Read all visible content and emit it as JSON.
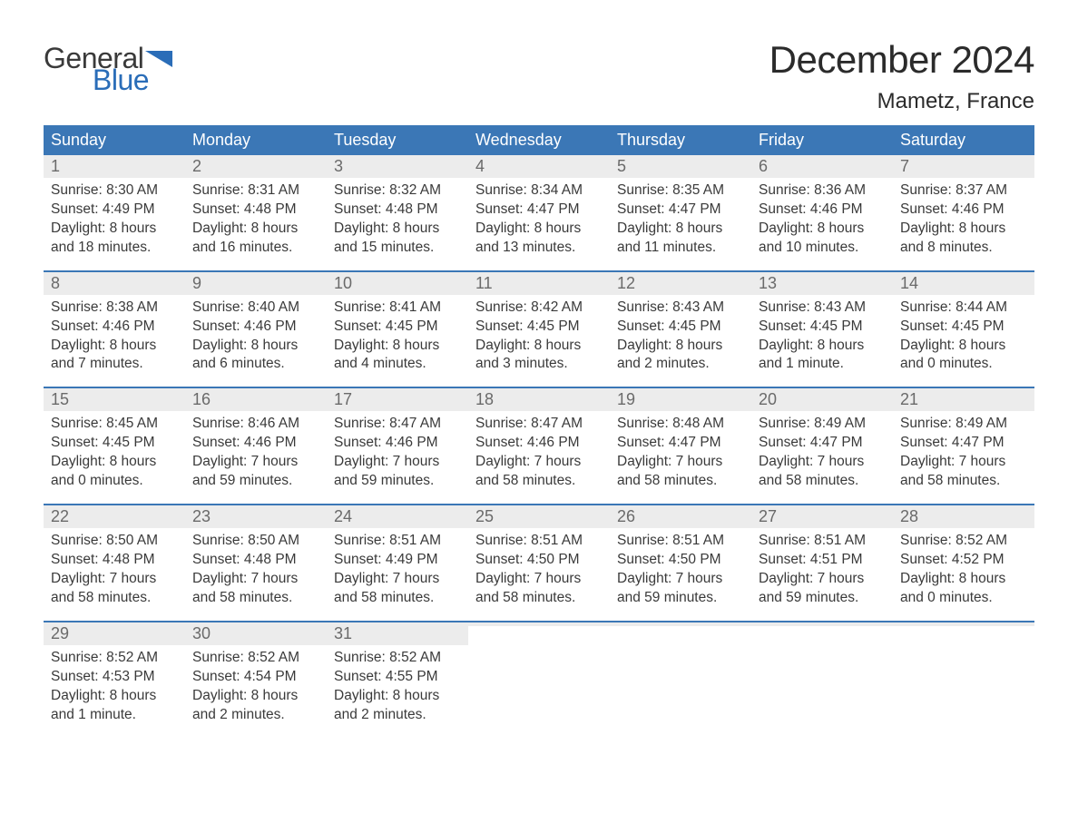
{
  "colors": {
    "header_bg": "#3b77b6",
    "header_text": "#ffffff",
    "row_divider": "#3b77b6",
    "daynum_bg": "#ececec",
    "daynum_text": "#6a6a6a",
    "body_text": "#3a3a3a",
    "logo_general": "#3a3a3a",
    "logo_blue": "#2a6db8",
    "title_text": "#2b2b2b",
    "page_bg": "#ffffff"
  },
  "typography": {
    "title_fontsize": 42,
    "location_fontsize": 24,
    "dow_fontsize": 18,
    "daynum_fontsize": 18,
    "body_fontsize": 15.5,
    "logo_fontsize": 32,
    "font_family": "Arial"
  },
  "logo": {
    "text_general": "General",
    "text_blue": "Blue"
  },
  "title": "December 2024",
  "location": "Mametz, France",
  "dow": [
    "Sunday",
    "Monday",
    "Tuesday",
    "Wednesday",
    "Thursday",
    "Friday",
    "Saturday"
  ],
  "weeks": [
    [
      {
        "n": "1",
        "sunrise": "Sunrise: 8:30 AM",
        "sunset": "Sunset: 4:49 PM",
        "dl1": "Daylight: 8 hours",
        "dl2": "and 18 minutes."
      },
      {
        "n": "2",
        "sunrise": "Sunrise: 8:31 AM",
        "sunset": "Sunset: 4:48 PM",
        "dl1": "Daylight: 8 hours",
        "dl2": "and 16 minutes."
      },
      {
        "n": "3",
        "sunrise": "Sunrise: 8:32 AM",
        "sunset": "Sunset: 4:48 PM",
        "dl1": "Daylight: 8 hours",
        "dl2": "and 15 minutes."
      },
      {
        "n": "4",
        "sunrise": "Sunrise: 8:34 AM",
        "sunset": "Sunset: 4:47 PM",
        "dl1": "Daylight: 8 hours",
        "dl2": "and 13 minutes."
      },
      {
        "n": "5",
        "sunrise": "Sunrise: 8:35 AM",
        "sunset": "Sunset: 4:47 PM",
        "dl1": "Daylight: 8 hours",
        "dl2": "and 11 minutes."
      },
      {
        "n": "6",
        "sunrise": "Sunrise: 8:36 AM",
        "sunset": "Sunset: 4:46 PM",
        "dl1": "Daylight: 8 hours",
        "dl2": "and 10 minutes."
      },
      {
        "n": "7",
        "sunrise": "Sunrise: 8:37 AM",
        "sunset": "Sunset: 4:46 PM",
        "dl1": "Daylight: 8 hours",
        "dl2": "and 8 minutes."
      }
    ],
    [
      {
        "n": "8",
        "sunrise": "Sunrise: 8:38 AM",
        "sunset": "Sunset: 4:46 PM",
        "dl1": "Daylight: 8 hours",
        "dl2": "and 7 minutes."
      },
      {
        "n": "9",
        "sunrise": "Sunrise: 8:40 AM",
        "sunset": "Sunset: 4:46 PM",
        "dl1": "Daylight: 8 hours",
        "dl2": "and 6 minutes."
      },
      {
        "n": "10",
        "sunrise": "Sunrise: 8:41 AM",
        "sunset": "Sunset: 4:45 PM",
        "dl1": "Daylight: 8 hours",
        "dl2": "and 4 minutes."
      },
      {
        "n": "11",
        "sunrise": "Sunrise: 8:42 AM",
        "sunset": "Sunset: 4:45 PM",
        "dl1": "Daylight: 8 hours",
        "dl2": "and 3 minutes."
      },
      {
        "n": "12",
        "sunrise": "Sunrise: 8:43 AM",
        "sunset": "Sunset: 4:45 PM",
        "dl1": "Daylight: 8 hours",
        "dl2": "and 2 minutes."
      },
      {
        "n": "13",
        "sunrise": "Sunrise: 8:43 AM",
        "sunset": "Sunset: 4:45 PM",
        "dl1": "Daylight: 8 hours",
        "dl2": "and 1 minute."
      },
      {
        "n": "14",
        "sunrise": "Sunrise: 8:44 AM",
        "sunset": "Sunset: 4:45 PM",
        "dl1": "Daylight: 8 hours",
        "dl2": "and 0 minutes."
      }
    ],
    [
      {
        "n": "15",
        "sunrise": "Sunrise: 8:45 AM",
        "sunset": "Sunset: 4:45 PM",
        "dl1": "Daylight: 8 hours",
        "dl2": "and 0 minutes."
      },
      {
        "n": "16",
        "sunrise": "Sunrise: 8:46 AM",
        "sunset": "Sunset: 4:46 PM",
        "dl1": "Daylight: 7 hours",
        "dl2": "and 59 minutes."
      },
      {
        "n": "17",
        "sunrise": "Sunrise: 8:47 AM",
        "sunset": "Sunset: 4:46 PM",
        "dl1": "Daylight: 7 hours",
        "dl2": "and 59 minutes."
      },
      {
        "n": "18",
        "sunrise": "Sunrise: 8:47 AM",
        "sunset": "Sunset: 4:46 PM",
        "dl1": "Daylight: 7 hours",
        "dl2": "and 58 minutes."
      },
      {
        "n": "19",
        "sunrise": "Sunrise: 8:48 AM",
        "sunset": "Sunset: 4:47 PM",
        "dl1": "Daylight: 7 hours",
        "dl2": "and 58 minutes."
      },
      {
        "n": "20",
        "sunrise": "Sunrise: 8:49 AM",
        "sunset": "Sunset: 4:47 PM",
        "dl1": "Daylight: 7 hours",
        "dl2": "and 58 minutes."
      },
      {
        "n": "21",
        "sunrise": "Sunrise: 8:49 AM",
        "sunset": "Sunset: 4:47 PM",
        "dl1": "Daylight: 7 hours",
        "dl2": "and 58 minutes."
      }
    ],
    [
      {
        "n": "22",
        "sunrise": "Sunrise: 8:50 AM",
        "sunset": "Sunset: 4:48 PM",
        "dl1": "Daylight: 7 hours",
        "dl2": "and 58 minutes."
      },
      {
        "n": "23",
        "sunrise": "Sunrise: 8:50 AM",
        "sunset": "Sunset: 4:48 PM",
        "dl1": "Daylight: 7 hours",
        "dl2": "and 58 minutes."
      },
      {
        "n": "24",
        "sunrise": "Sunrise: 8:51 AM",
        "sunset": "Sunset: 4:49 PM",
        "dl1": "Daylight: 7 hours",
        "dl2": "and 58 minutes."
      },
      {
        "n": "25",
        "sunrise": "Sunrise: 8:51 AM",
        "sunset": "Sunset: 4:50 PM",
        "dl1": "Daylight: 7 hours",
        "dl2": "and 58 minutes."
      },
      {
        "n": "26",
        "sunrise": "Sunrise: 8:51 AM",
        "sunset": "Sunset: 4:50 PM",
        "dl1": "Daylight: 7 hours",
        "dl2": "and 59 minutes."
      },
      {
        "n": "27",
        "sunrise": "Sunrise: 8:51 AM",
        "sunset": "Sunset: 4:51 PM",
        "dl1": "Daylight: 7 hours",
        "dl2": "and 59 minutes."
      },
      {
        "n": "28",
        "sunrise": "Sunrise: 8:52 AM",
        "sunset": "Sunset: 4:52 PM",
        "dl1": "Daylight: 8 hours",
        "dl2": "and 0 minutes."
      }
    ],
    [
      {
        "n": "29",
        "sunrise": "Sunrise: 8:52 AM",
        "sunset": "Sunset: 4:53 PM",
        "dl1": "Daylight: 8 hours",
        "dl2": "and 1 minute."
      },
      {
        "n": "30",
        "sunrise": "Sunrise: 8:52 AM",
        "sunset": "Sunset: 4:54 PM",
        "dl1": "Daylight: 8 hours",
        "dl2": "and 2 minutes."
      },
      {
        "n": "31",
        "sunrise": "Sunrise: 8:52 AM",
        "sunset": "Sunset: 4:55 PM",
        "dl1": "Daylight: 8 hours",
        "dl2": "and 2 minutes."
      },
      {
        "empty": true,
        "n": " "
      },
      {
        "empty": true,
        "n": " "
      },
      {
        "empty": true,
        "n": " "
      },
      {
        "empty": true,
        "n": " "
      }
    ]
  ]
}
